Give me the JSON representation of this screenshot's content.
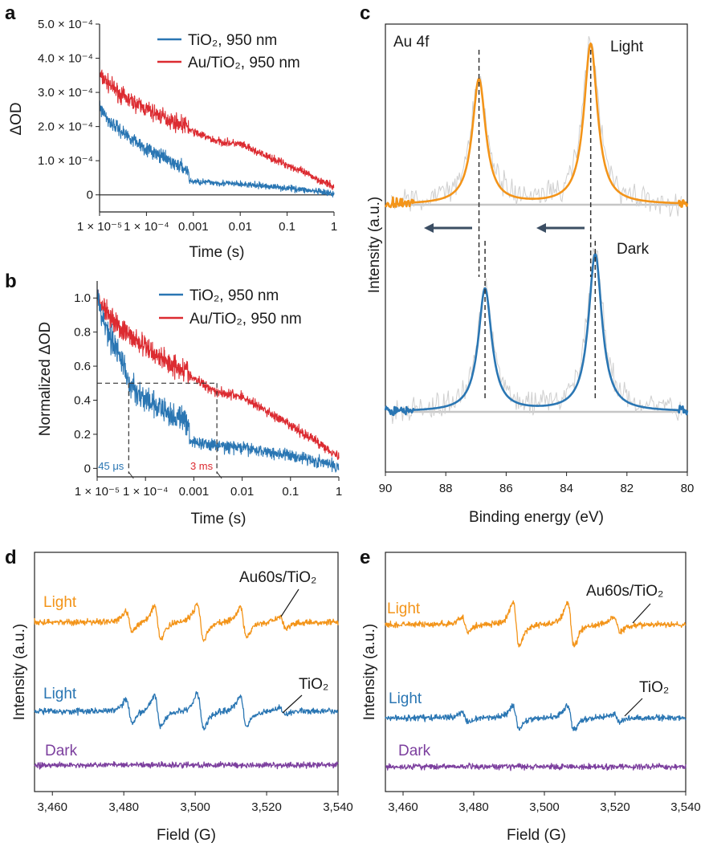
{
  "colors": {
    "blue": "#2a76b3",
    "red": "#dc2b31",
    "orange": "#f39419",
    "purple": "#7c3f9e",
    "gray": "#c8c8c8",
    "arrow": "#3b4e63",
    "dash": "#333333"
  },
  "chart_data": [
    {
      "id": "a",
      "panel_label": "a",
      "type": "line",
      "xlabel": "Time (s)",
      "ylabel": "ΔOD",
      "xscale": "log",
      "xlim": [
        1e-05,
        1
      ],
      "ylim": [
        -5e-05,
        0.0005
      ],
      "x_ticks": [
        1e-05,
        0.0001,
        0.001,
        0.01,
        0.1,
        1
      ],
      "x_tick_labels": [
        "1 × 10⁻⁵",
        "1 × 10⁻⁴",
        "0.001",
        "0.01",
        "0.1",
        "1"
      ],
      "y_ticks": [
        0,
        0.0001,
        0.0002,
        0.0003,
        0.0004,
        0.0005
      ],
      "y_tick_labels": [
        "0",
        "1.0 × 10⁻⁴",
        "2.0 × 10⁻⁴",
        "3.0 × 10⁻⁴",
        "4.0 × 10⁻⁴",
        "5.0 × 10⁻⁴"
      ],
      "zero_line": true,
      "series": [
        {
          "name": "TiO₂, 950 nm",
          "color": "#2a76b3",
          "noise": 9e-06,
          "x": [
            1e-05,
            1.5e-05,
            3e-05,
            0.0001,
            0.0003,
            0.0008,
            0.00081,
            0.002,
            0.01,
            0.05,
            0.2,
            0.5,
            1
          ],
          "y": [
            0.00026,
            0.00022,
            0.000185,
            0.000135,
            0.0001,
            7e-05,
            4e-05,
            3.7e-05,
            3.1e-05,
            2.4e-05,
            1.6e-05,
            8e-06,
            2e-06
          ]
        },
        {
          "name": "Au/TiO₂, 950 nm",
          "color": "#dc2b31",
          "noise": 1.1e-05,
          "x": [
            1e-05,
            3e-05,
            0.0001,
            0.0003,
            0.0008,
            0.00081,
            0.003,
            0.01,
            0.03,
            0.1,
            0.3,
            1
          ],
          "y": [
            0.00035,
            0.00029,
            0.00025,
            0.00022,
            0.0002,
            0.00019,
            0.000158,
            0.000148,
            0.000118,
            8.8e-05,
            5.8e-05,
            2.2e-05
          ]
        }
      ]
    },
    {
      "id": "b",
      "panel_label": "b",
      "type": "line",
      "xlabel": "Time (s)",
      "ylabel": "Normalized ΔOD",
      "xscale": "log",
      "xlim": [
        1e-05,
        1
      ],
      "ylim": [
        -0.05,
        1.1
      ],
      "x_ticks": [
        1e-05,
        0.0001,
        0.001,
        0.01,
        0.1,
        1
      ],
      "x_tick_labels": [
        "1 × 10⁻⁵",
        "1 × 10⁻⁴",
        "0.001",
        "0.01",
        "0.1",
        "1"
      ],
      "y_ticks": [
        0,
        0.2,
        0.4,
        0.6,
        0.8,
        1.0
      ],
      "y_tick_labels": [
        "0",
        "0.2",
        "0.4",
        "0.6",
        "0.8",
        "1.0"
      ],
      "half_line": 0.5,
      "half_life_markers": [
        {
          "label": "45 μs",
          "x": 4.5e-05,
          "color": "#2a76b3"
        },
        {
          "label": "3 ms",
          "x": 0.003,
          "color": "#dc2b31"
        }
      ],
      "series": [
        {
          "name": "TiO₂, 950 nm",
          "color": "#2a76b3",
          "noise": 0.035,
          "x": [
            1e-05,
            1.5e-05,
            3e-05,
            4.5e-05,
            0.0001,
            0.0003,
            0.0008,
            0.00081,
            0.002,
            0.01,
            0.05,
            0.2,
            0.5,
            1
          ],
          "y": [
            1.0,
            0.83,
            0.66,
            0.5,
            0.4,
            0.32,
            0.27,
            0.16,
            0.14,
            0.12,
            0.09,
            0.06,
            0.03,
            0.01
          ]
        },
        {
          "name": "Au/TiO₂, 950 nm",
          "color": "#dc2b31",
          "noise": 0.03,
          "x": [
            1e-05,
            3e-05,
            0.0001,
            0.0003,
            0.0008,
            0.00081,
            0.003,
            0.01,
            0.03,
            0.1,
            0.3,
            1
          ],
          "y": [
            1.0,
            0.82,
            0.71,
            0.62,
            0.57,
            0.54,
            0.45,
            0.42,
            0.34,
            0.25,
            0.17,
            0.07
          ]
        }
      ]
    },
    {
      "id": "c",
      "panel_label": "c",
      "type": "line",
      "title": "Au 4f",
      "xlabel": "Binding energy (eV)",
      "ylabel": "Intensity (a.u.)",
      "xlim": [
        90,
        80
      ],
      "x_reversed": true,
      "x_ticks": [
        90,
        88,
        86,
        84,
        82,
        80
      ],
      "x_tick_labels": [
        "90",
        "88",
        "86",
        "84",
        "82",
        "80"
      ],
      "curve_labels": [
        "Light",
        "Dark"
      ],
      "peaks": {
        "light": [
          86.9,
          83.2
        ],
        "dark": [
          86.7,
          83.05
        ]
      },
      "series": [
        {
          "name": "Light (fit)",
          "color": "#f39419",
          "peaks": [
            86.9,
            83.2
          ],
          "heights": [
            0.78,
            1.0
          ]
        },
        {
          "name": "Dark (fit)",
          "color": "#2a76b3",
          "peaks": [
            86.7,
            83.05
          ],
          "heights": [
            0.78,
            1.0
          ]
        }
      ],
      "annotation": "Peaks shift to higher binding energy under light (arrows)"
    },
    {
      "id": "d",
      "panel_label": "d",
      "type": "line",
      "xlabel": "Field (G)",
      "ylabel": "Intensity (a.u.)",
      "xlim": [
        3455,
        3540
      ],
      "x_ticks": [
        3460,
        3480,
        3500,
        3520,
        3540
      ],
      "x_tick_labels": [
        "3,460",
        "3,480",
        "3,500",
        "3,520",
        "3,540"
      ],
      "series": [
        {
          "name": "Light — Au60s/TiO₂",
          "label": "Light",
          "tag": "Au60s/TiO₂",
          "color": "#f39419",
          "lines": [
            3481.5,
            3489.5,
            3501.5,
            3513.5,
            3524.5
          ],
          "amps": [
            0.6,
            0.95,
            1.0,
            0.85,
            0.35
          ]
        },
        {
          "name": "Light — TiO₂",
          "label": "Light",
          "tag": "TiO₂",
          "color": "#2a76b3",
          "lines": [
            3481.5,
            3489.5,
            3501.5,
            3513.5,
            3524.5
          ],
          "amps": [
            0.65,
            0.9,
            1.0,
            0.85,
            0.2
          ]
        },
        {
          "name": "Dark",
          "label": "Dark",
          "color": "#7c3f9e",
          "lines": [],
          "amps": []
        }
      ]
    },
    {
      "id": "e",
      "panel_label": "e",
      "type": "line",
      "xlabel": "Field (G)",
      "ylabel": "Intensity (a.u.)",
      "xlim": [
        3455,
        3540
      ],
      "x_ticks": [
        3460,
        3480,
        3500,
        3520,
        3540
      ],
      "x_tick_labels": [
        "3,460",
        "3,480",
        "3,500",
        "3,520",
        "3,540"
      ],
      "series": [
        {
          "name": "Light — Au60s/TiO₂",
          "label": "Light",
          "tag": "Au60s/TiO₂",
          "color": "#f39419",
          "lines": [
            3477.5,
            3492.0,
            3507.5,
            3520.5
          ],
          "amps": [
            0.35,
            1.0,
            1.0,
            0.35
          ]
        },
        {
          "name": "Light — TiO₂",
          "label": "Light",
          "tag": "TiO₂",
          "color": "#2a76b3",
          "lines": [
            3477.5,
            3492.0,
            3507.5,
            3520.5
          ],
          "amps": [
            0.35,
            0.8,
            0.8,
            0.3
          ]
        },
        {
          "name": "Dark",
          "label": "Dark",
          "color": "#7c3f9e",
          "lines": [],
          "amps": []
        }
      ]
    }
  ]
}
